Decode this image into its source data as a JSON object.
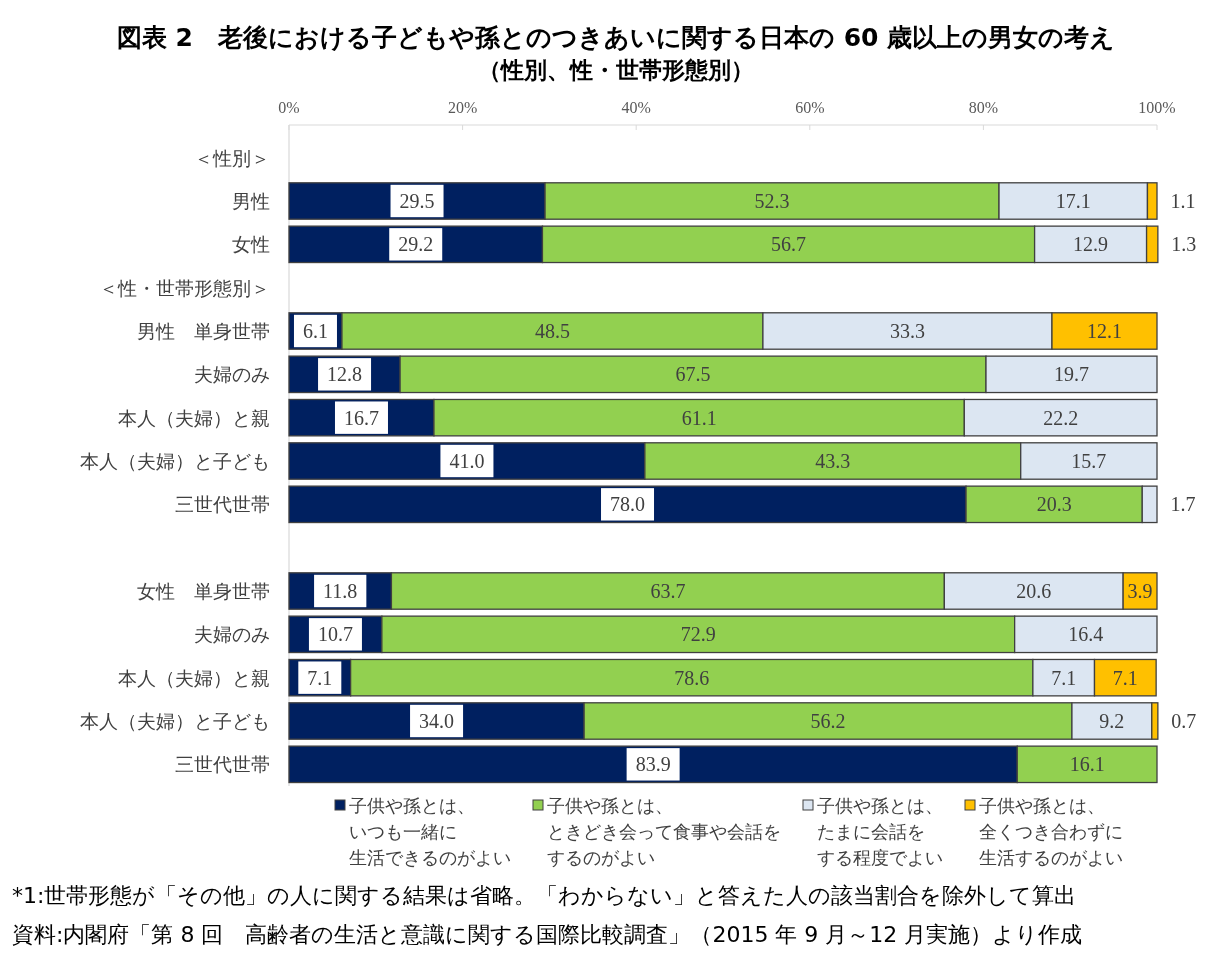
{
  "chart_data": {
    "type": "bar",
    "orientation": "horizontal",
    "stacked": true,
    "title": "図表 2　老後における子どもや孫とのつきあいに関する日本の 60 歳以上の男女の考え",
    "subtitle": "（性別、性・世帯形態別）",
    "categories": [
      "＜性別＞",
      "男性",
      "女性",
      "＜性・世帯形態別＞",
      "男性　単身世帯",
      "夫婦のみ",
      "本人（夫婦）と親",
      "本人（夫婦）と子ども",
      "三世代世帯",
      null,
      "女性　単身世帯",
      "夫婦のみ",
      "本人（夫婦）と親",
      "本人（夫婦）と子ども",
      "三世代世帯"
    ],
    "series": [
      {
        "name": "子供や孫とは、いつも一緒に生活できるのがよい",
        "color": "#002060",
        "values": [
          null,
          29.5,
          29.2,
          null,
          6.1,
          12.8,
          16.7,
          41.0,
          78.0,
          null,
          11.8,
          10.7,
          7.1,
          34.0,
          83.9
        ],
        "value_labels": [
          null,
          "29.5",
          "29.2",
          null,
          "6.1",
          "12.8",
          "16.7",
          "41.0",
          "78.0",
          null,
          "11.8",
          "10.7",
          "7.1",
          "34.0",
          "83.9"
        ]
      },
      {
        "name": "子供や孫とは、ときどき会って食事や会話をするのがよい",
        "color": "#92d050",
        "values": [
          null,
          52.3,
          56.7,
          null,
          48.5,
          67.5,
          61.1,
          43.3,
          20.3,
          null,
          63.7,
          72.9,
          78.6,
          56.2,
          16.1
        ],
        "value_labels": [
          null,
          "52.3",
          "56.7",
          null,
          "48.5",
          "67.5",
          "61.1",
          "43.3",
          "20.3",
          null,
          "63.7",
          "72.9",
          "78.6",
          "56.2",
          "16.1"
        ]
      },
      {
        "name": "子供や孫とは、たまに会話をする程度でよい",
        "color": "#dce6f2",
        "values": [
          null,
          17.1,
          12.9,
          null,
          33.3,
          19.7,
          22.2,
          15.7,
          1.7,
          null,
          20.6,
          16.4,
          7.1,
          9.2,
          null
        ],
        "value_labels": [
          null,
          "17.1",
          "12.9",
          null,
          "33.3",
          "19.7",
          "22.2",
          "15.7",
          "1.7",
          null,
          "20.6",
          "16.4",
          "7.1",
          "9.2",
          null
        ]
      },
      {
        "name": "子供や孫とは、全くつき合わずに生活するのがよい",
        "color": "#ffc000",
        "values": [
          null,
          1.1,
          1.3,
          null,
          12.1,
          null,
          null,
          null,
          null,
          null,
          3.9,
          null,
          7.1,
          0.7,
          null
        ],
        "value_labels": [
          null,
          "1.1",
          "1.3",
          null,
          "12.1",
          null,
          null,
          null,
          null,
          null,
          "3.9",
          null,
          "7.1",
          "0.7",
          null
        ]
      }
    ],
    "xlim": [
      0,
      100
    ],
    "xticks": [
      {
        "value": 0,
        "label": "0%"
      },
      {
        "value": 20,
        "label": "20%"
      },
      {
        "value": 40,
        "label": "40%"
      },
      {
        "value": 60,
        "label": "60%"
      },
      {
        "value": 80,
        "label": "80%"
      },
      {
        "value": 100,
        "label": "100%"
      }
    ],
    "legend": "bottom",
    "annotations": [
      "*1:世帯形態が「その他」の人に関する結果は省略。「わからない」と答えた人の該当割合を除外して算出",
      "資料:内閣府「第 8 回　高齢者の生活と意識に関する国際比較調査」（2015 年 9 月～12 月実施）より作成"
    ]
  }
}
